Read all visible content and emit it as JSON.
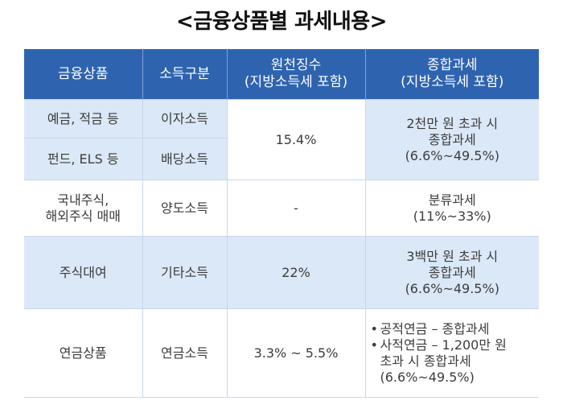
{
  "title": "<금융상품별 과세내용>",
  "headers": [
    "금융상품",
    "소득구분",
    "원천징수\n(지방소득세 포함)",
    "종합과세\n(지방소득세 포함)"
  ],
  "rows": {
    "deposit": {
      "product": "예금, 적금 등",
      "income": "이자소득"
    },
    "fund": {
      "product": "펀드, ELS 등",
      "income": "배당소득"
    },
    "interest_dividend": {
      "withholding": "15.4%",
      "comprehensive": [
        "2천만 원 초과 시",
        "종합과세",
        "(6.6%~49.5%)"
      ]
    },
    "stock": {
      "product": [
        "국내주식,",
        "해외주식 매매"
      ],
      "income": "양도소득",
      "withholding": "-",
      "comprehensive": [
        "분류과세",
        "(11%~33%)"
      ]
    },
    "lending": {
      "product": "주식대여",
      "income": "기타소득",
      "withholding": "22%",
      "comprehensive": [
        "3백만 원 초과 시",
        "종합과세",
        "(6.6%~49.5%)"
      ]
    },
    "pension": {
      "product": "연금상품",
      "income": "연금소득",
      "withholding": "3.3% ~ 5.5%",
      "bullet": "•",
      "comprehensive": [
        "공적연금 – 종합과세",
        "사적연금 – 1,200만 원\n초과 시 종합과세\n(6.6%~49.5%)"
      ]
    }
  }
}
